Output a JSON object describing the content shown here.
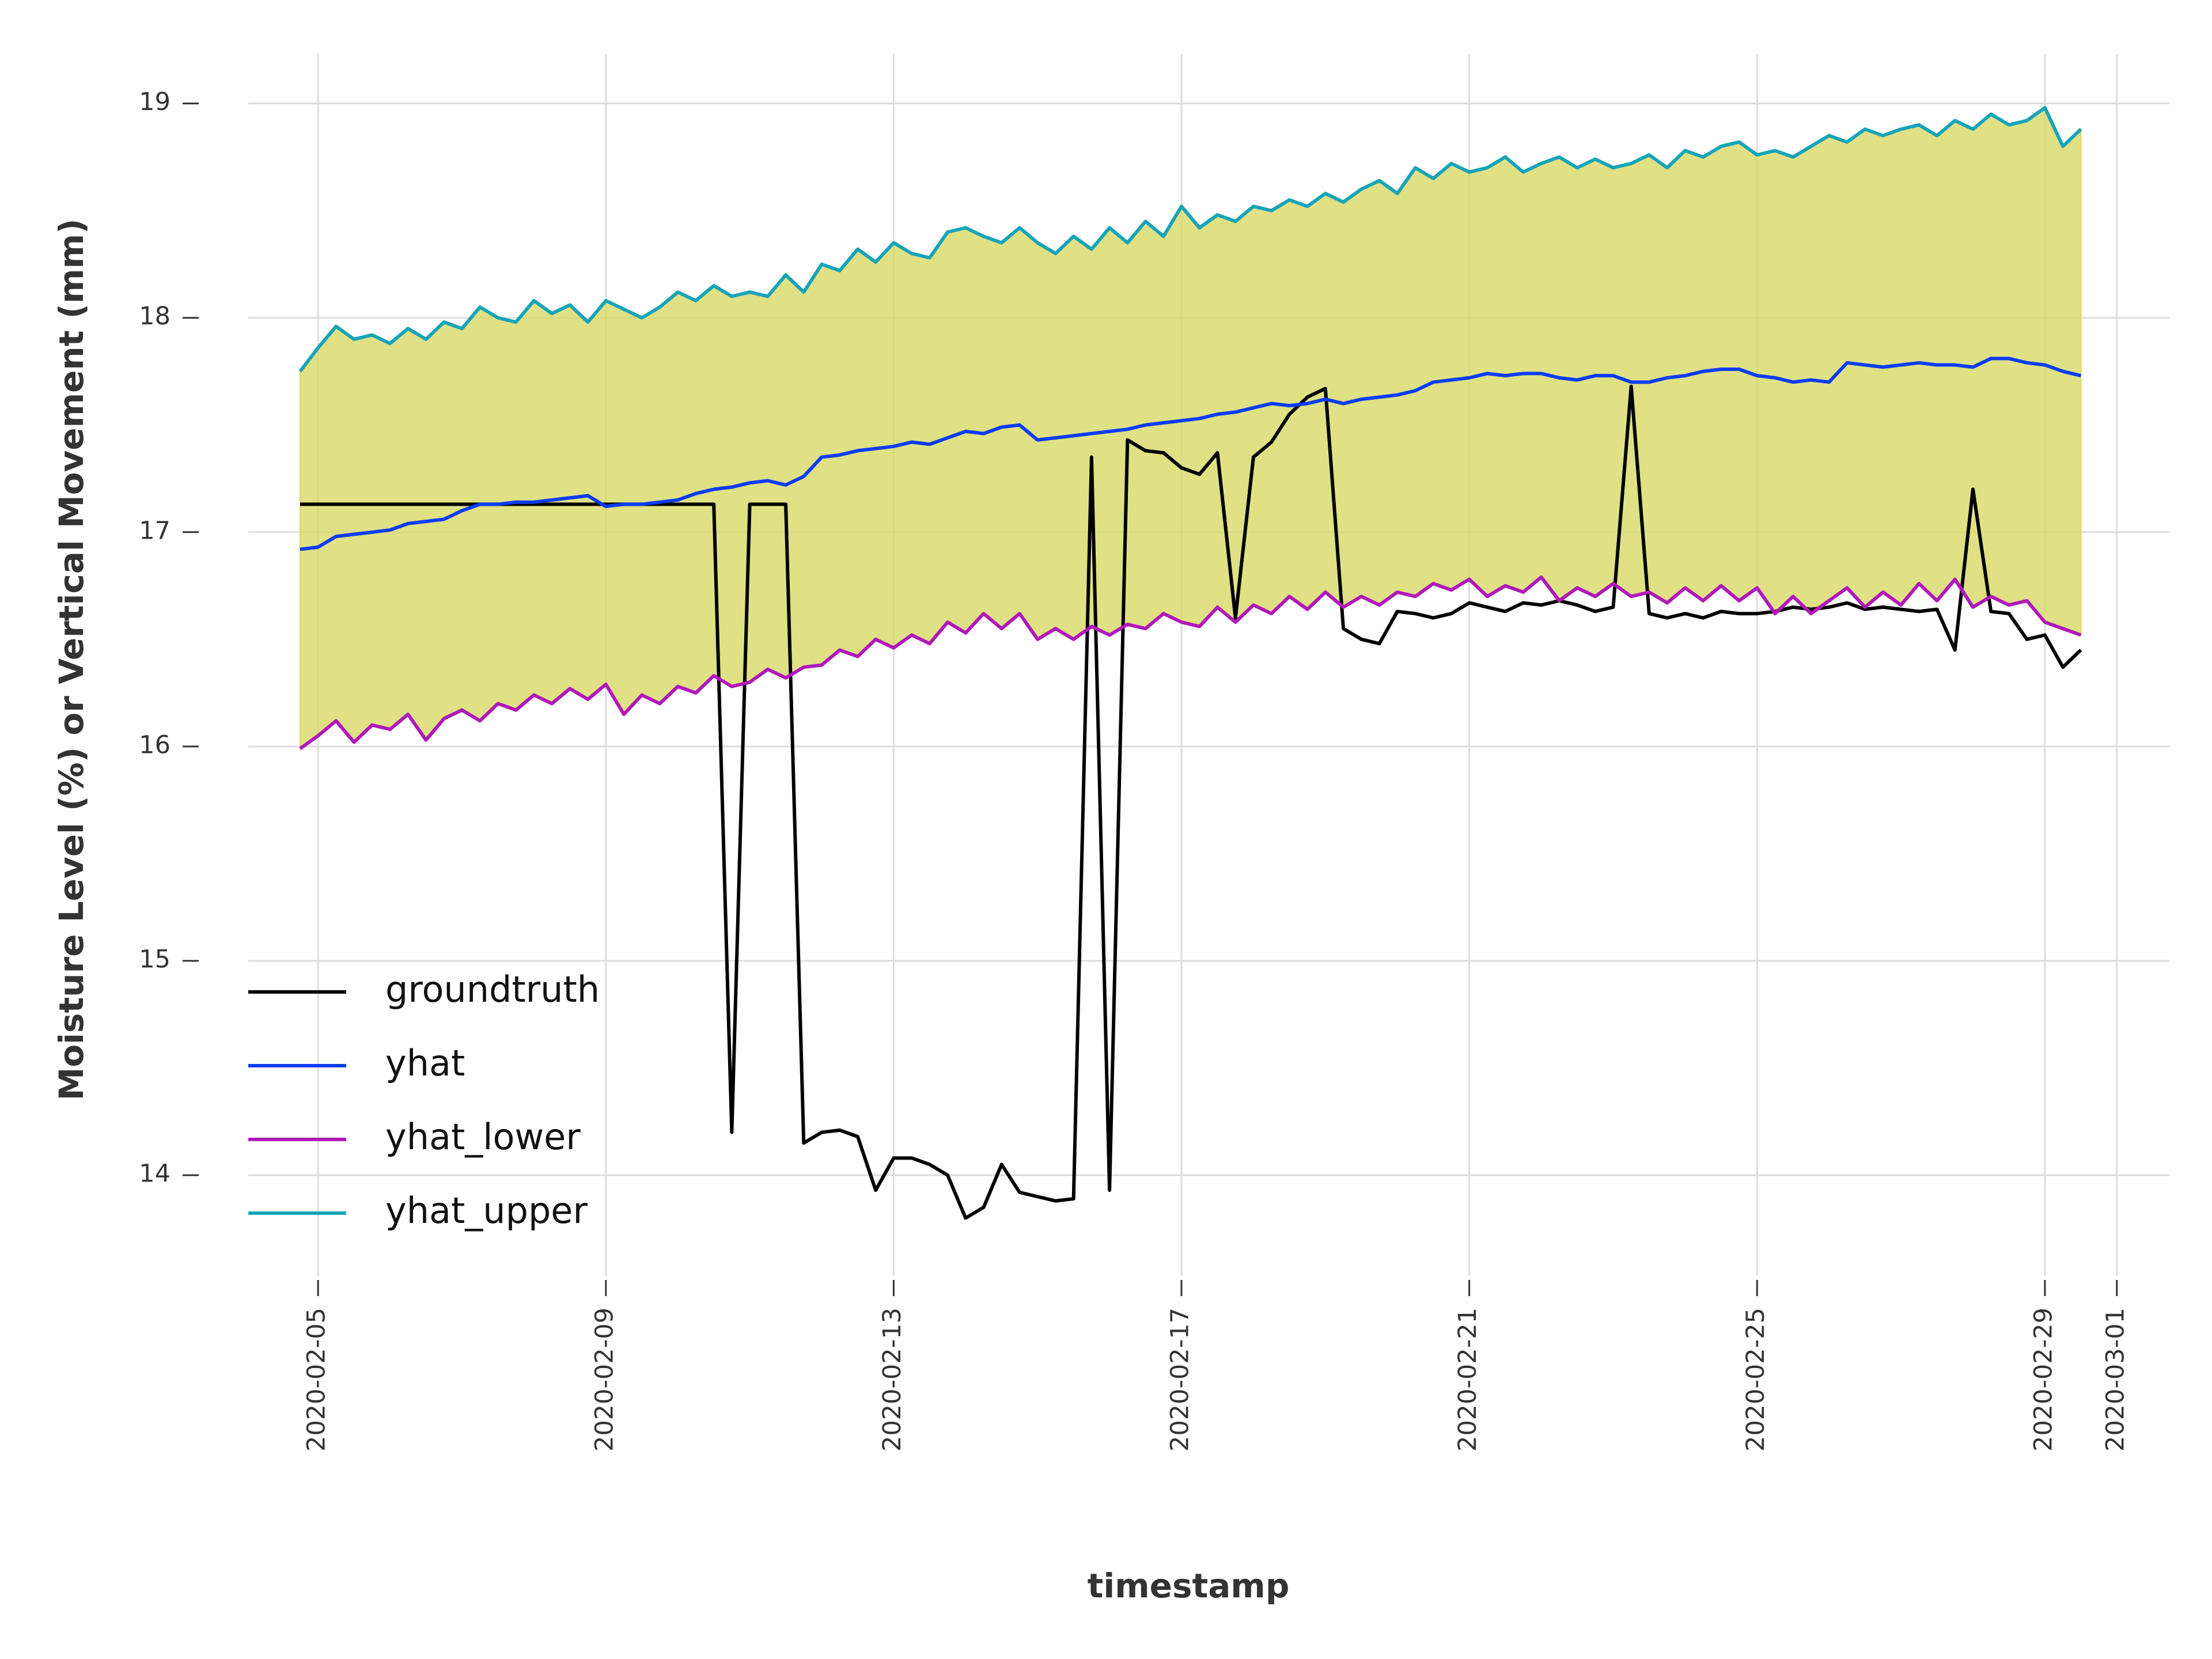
{
  "chart_data": {
    "type": "line",
    "xlabel": "timestamp",
    "ylabel": "Moisture Level (%) or Vertical Movement (mm)",
    "x": [
      4.75,
      5,
      5.25,
      5.5,
      5.75,
      6,
      6.25,
      6.5,
      6.75,
      7,
      7.25,
      7.5,
      7.75,
      8,
      8.25,
      8.5,
      8.75,
      9,
      9.25,
      9.5,
      9.75,
      10,
      10.25,
      10.5,
      10.75,
      11,
      11.25,
      11.5,
      11.75,
      12,
      12.25,
      12.5,
      12.75,
      13,
      13.25,
      13.5,
      13.75,
      14,
      14.25,
      14.5,
      14.75,
      15,
      15.25,
      15.5,
      15.75,
      16,
      16.25,
      16.5,
      16.75,
      17,
      17.25,
      17.5,
      17.75,
      18,
      18.25,
      18.5,
      18.75,
      19,
      19.25,
      19.5,
      19.75,
      20,
      20.25,
      20.5,
      20.75,
      21,
      21.25,
      21.5,
      21.75,
      22,
      22.25,
      22.5,
      22.75,
      23,
      23.25,
      23.5,
      23.75,
      24,
      24.25,
      24.5,
      24.75,
      25,
      25.25,
      25.5,
      25.75,
      26,
      26.25,
      26.5,
      26.75,
      27,
      27.25,
      27.5,
      27.75,
      28,
      28.25,
      28.5,
      28.75,
      29,
      29.25,
      29.5
    ],
    "series": [
      {
        "name": "groundtruth",
        "color": "#000000",
        "values": [
          17.13,
          17.13,
          17.13,
          17.13,
          17.13,
          17.13,
          17.13,
          17.13,
          17.13,
          17.13,
          17.13,
          17.13,
          17.13,
          17.13,
          17.13,
          17.13,
          17.13,
          17.13,
          17.13,
          17.13,
          17.13,
          17.13,
          17.13,
          17.13,
          14.2,
          17.13,
          17.13,
          17.13,
          14.15,
          14.2,
          14.21,
          14.18,
          13.93,
          14.08,
          14.08,
          14.05,
          14.0,
          13.8,
          13.85,
          14.05,
          13.92,
          13.9,
          13.88,
          13.89,
          17.35,
          13.93,
          17.43,
          17.38,
          17.37,
          17.3,
          17.27,
          17.37,
          16.6,
          17.35,
          17.42,
          17.55,
          17.63,
          17.67,
          16.55,
          16.5,
          16.48,
          16.63,
          16.62,
          16.6,
          16.62,
          16.67,
          16.65,
          16.63,
          16.67,
          16.66,
          16.68,
          16.66,
          16.63,
          16.65,
          17.68,
          16.62,
          16.6,
          16.62,
          16.6,
          16.63,
          16.62,
          16.62,
          16.63,
          16.65,
          16.64,
          16.65,
          16.67,
          16.64,
          16.65,
          16.64,
          16.63,
          16.64,
          16.45,
          17.2,
          16.63,
          16.62,
          16.5,
          16.52,
          16.37,
          16.45
        ]
      },
      {
        "name": "yhat",
        "color": "#0a3cf5",
        "values": [
          16.92,
          16.93,
          16.98,
          16.99,
          17.0,
          17.01,
          17.04,
          17.05,
          17.06,
          17.1,
          17.13,
          17.13,
          17.14,
          17.14,
          17.15,
          17.16,
          17.17,
          17.12,
          17.13,
          17.13,
          17.14,
          17.15,
          17.18,
          17.2,
          17.21,
          17.23,
          17.24,
          17.22,
          17.26,
          17.35,
          17.36,
          17.38,
          17.39,
          17.4,
          17.42,
          17.41,
          17.44,
          17.47,
          17.46,
          17.49,
          17.5,
          17.43,
          17.44,
          17.45,
          17.46,
          17.47,
          17.48,
          17.5,
          17.51,
          17.52,
          17.53,
          17.55,
          17.56,
          17.58,
          17.6,
          17.59,
          17.6,
          17.62,
          17.6,
          17.62,
          17.63,
          17.64,
          17.66,
          17.7,
          17.71,
          17.72,
          17.74,
          17.73,
          17.74,
          17.74,
          17.72,
          17.71,
          17.73,
          17.73,
          17.7,
          17.7,
          17.72,
          17.73,
          17.75,
          17.76,
          17.76,
          17.73,
          17.72,
          17.7,
          17.71,
          17.7,
          17.79,
          17.78,
          17.77,
          17.78,
          17.79,
          17.78,
          17.78,
          17.77,
          17.81,
          17.81,
          17.79,
          17.78,
          17.75,
          17.73
        ]
      },
      {
        "name": "yhat_lower",
        "color": "#b018b8",
        "values": [
          15.99,
          16.05,
          16.12,
          16.02,
          16.1,
          16.08,
          16.15,
          16.03,
          16.13,
          16.17,
          16.12,
          16.2,
          16.17,
          16.24,
          16.2,
          16.27,
          16.22,
          16.29,
          16.15,
          16.24,
          16.2,
          16.28,
          16.25,
          16.33,
          16.28,
          16.3,
          16.36,
          16.32,
          16.37,
          16.38,
          16.45,
          16.42,
          16.5,
          16.46,
          16.52,
          16.48,
          16.58,
          16.53,
          16.62,
          16.55,
          16.62,
          16.5,
          16.55,
          16.5,
          16.56,
          16.52,
          16.57,
          16.55,
          16.62,
          16.58,
          16.56,
          16.65,
          16.58,
          16.66,
          16.62,
          16.7,
          16.64,
          16.72,
          16.65,
          16.7,
          16.66,
          16.72,
          16.7,
          16.76,
          16.73,
          16.78,
          16.7,
          16.75,
          16.72,
          16.79,
          16.68,
          16.74,
          16.7,
          16.76,
          16.7,
          16.72,
          16.67,
          16.74,
          16.68,
          16.75,
          16.68,
          16.74,
          16.62,
          16.7,
          16.62,
          16.68,
          16.74,
          16.65,
          16.72,
          16.66,
          16.76,
          16.68,
          16.78,
          16.65,
          16.7,
          16.66,
          16.68,
          16.58,
          16.55,
          16.52
        ]
      },
      {
        "name": "yhat_upper",
        "color": "#18a4b8",
        "values": [
          17.75,
          17.86,
          17.96,
          17.9,
          17.92,
          17.88,
          17.95,
          17.9,
          17.98,
          17.95,
          18.05,
          18.0,
          17.98,
          18.08,
          18.02,
          18.06,
          17.98,
          18.08,
          18.04,
          18.0,
          18.05,
          18.12,
          18.08,
          18.15,
          18.1,
          18.12,
          18.1,
          18.2,
          18.12,
          18.25,
          18.22,
          18.32,
          18.26,
          18.35,
          18.3,
          18.28,
          18.4,
          18.42,
          18.38,
          18.35,
          18.42,
          18.35,
          18.3,
          18.38,
          18.32,
          18.42,
          18.35,
          18.45,
          18.38,
          18.52,
          18.42,
          18.48,
          18.45,
          18.52,
          18.5,
          18.55,
          18.52,
          18.58,
          18.54,
          18.6,
          18.64,
          18.58,
          18.7,
          18.65,
          18.72,
          18.68,
          18.7,
          18.75,
          18.68,
          18.72,
          18.75,
          18.7,
          18.74,
          18.7,
          18.72,
          18.76,
          18.7,
          18.78,
          18.75,
          18.8,
          18.82,
          18.76,
          18.78,
          18.75,
          18.8,
          18.85,
          18.82,
          18.88,
          18.85,
          18.88,
          18.9,
          18.85,
          18.92,
          18.88,
          18.95,
          18.9,
          18.92,
          18.98,
          18.8,
          18.88
        ]
      }
    ],
    "band": {
      "series": [
        2,
        3
      ],
      "color": "#d8d866"
    },
    "xlim": [
      4.03,
      30.73
    ],
    "xticks": [
      {
        "value": 5,
        "label": "2020-02-05"
      },
      {
        "value": 9,
        "label": "2020-02-09"
      },
      {
        "value": 13,
        "label": "2020-02-13"
      },
      {
        "value": 17,
        "label": "2020-02-17"
      },
      {
        "value": 21,
        "label": "2020-02-21"
      },
      {
        "value": 25,
        "label": "2020-02-25"
      },
      {
        "value": 29,
        "label": "2020-02-29"
      },
      {
        "value": 30,
        "label": "2020-03-01"
      }
    ],
    "ylim": [
      13.53,
      19.23
    ],
    "yticks": [
      14,
      15,
      16,
      17,
      18,
      19
    ],
    "grid": true,
    "legend": "lower left"
  }
}
